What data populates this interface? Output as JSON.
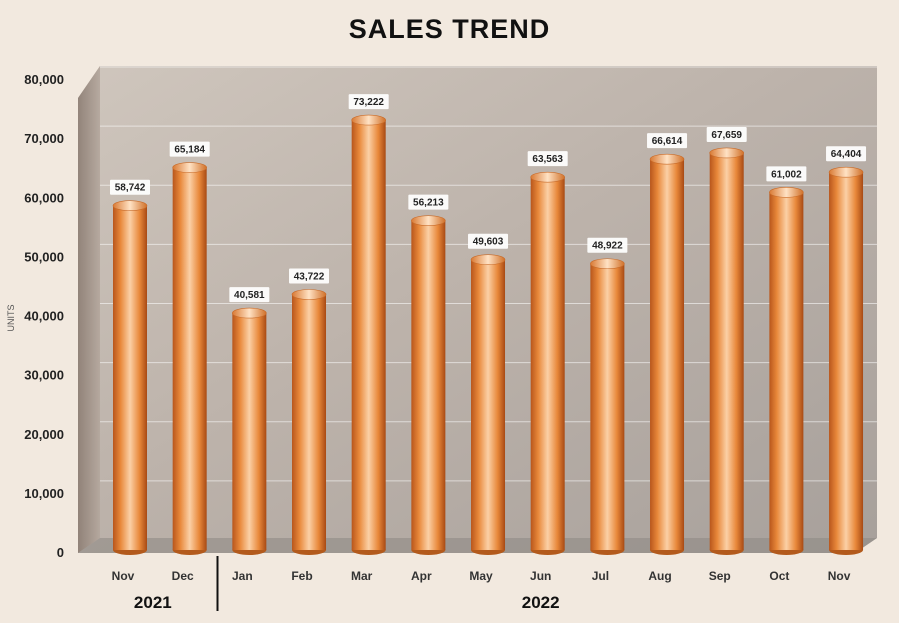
{
  "chart_data": {
    "type": "bar",
    "title": "SALES TREND",
    "ylabel": "UNITS",
    "xlabel": "",
    "ylim": [
      0,
      80000
    ],
    "yticks": [
      "0",
      "10,000",
      "20,000",
      "30,000",
      "40,000",
      "50,000",
      "60,000",
      "70,000",
      "80,000"
    ],
    "categories": [
      "Nov",
      "Dec",
      "Jan",
      "Feb",
      "Mar",
      "Apr",
      "May",
      "Jun",
      "Jul",
      "Aug",
      "Sep",
      "Oct",
      "Nov"
    ],
    "values": [
      58742,
      65184,
      40581,
      43722,
      73222,
      56213,
      49603,
      63563,
      48922,
      66614,
      67659,
      61002,
      64404
    ],
    "value_labels": [
      "58,742",
      "65,184",
      "40,581",
      "43,722",
      "73,222",
      "56,213",
      "49,603",
      "63,563",
      "48,922",
      "66,614",
      "67,659",
      "61,002",
      "64,404"
    ],
    "year_groups": [
      {
        "label": "2021",
        "start": 0,
        "end": 1
      },
      {
        "label": "2022",
        "start": 2,
        "end": 12
      }
    ],
    "grid": true,
    "bar_color": "#e8883a"
  }
}
